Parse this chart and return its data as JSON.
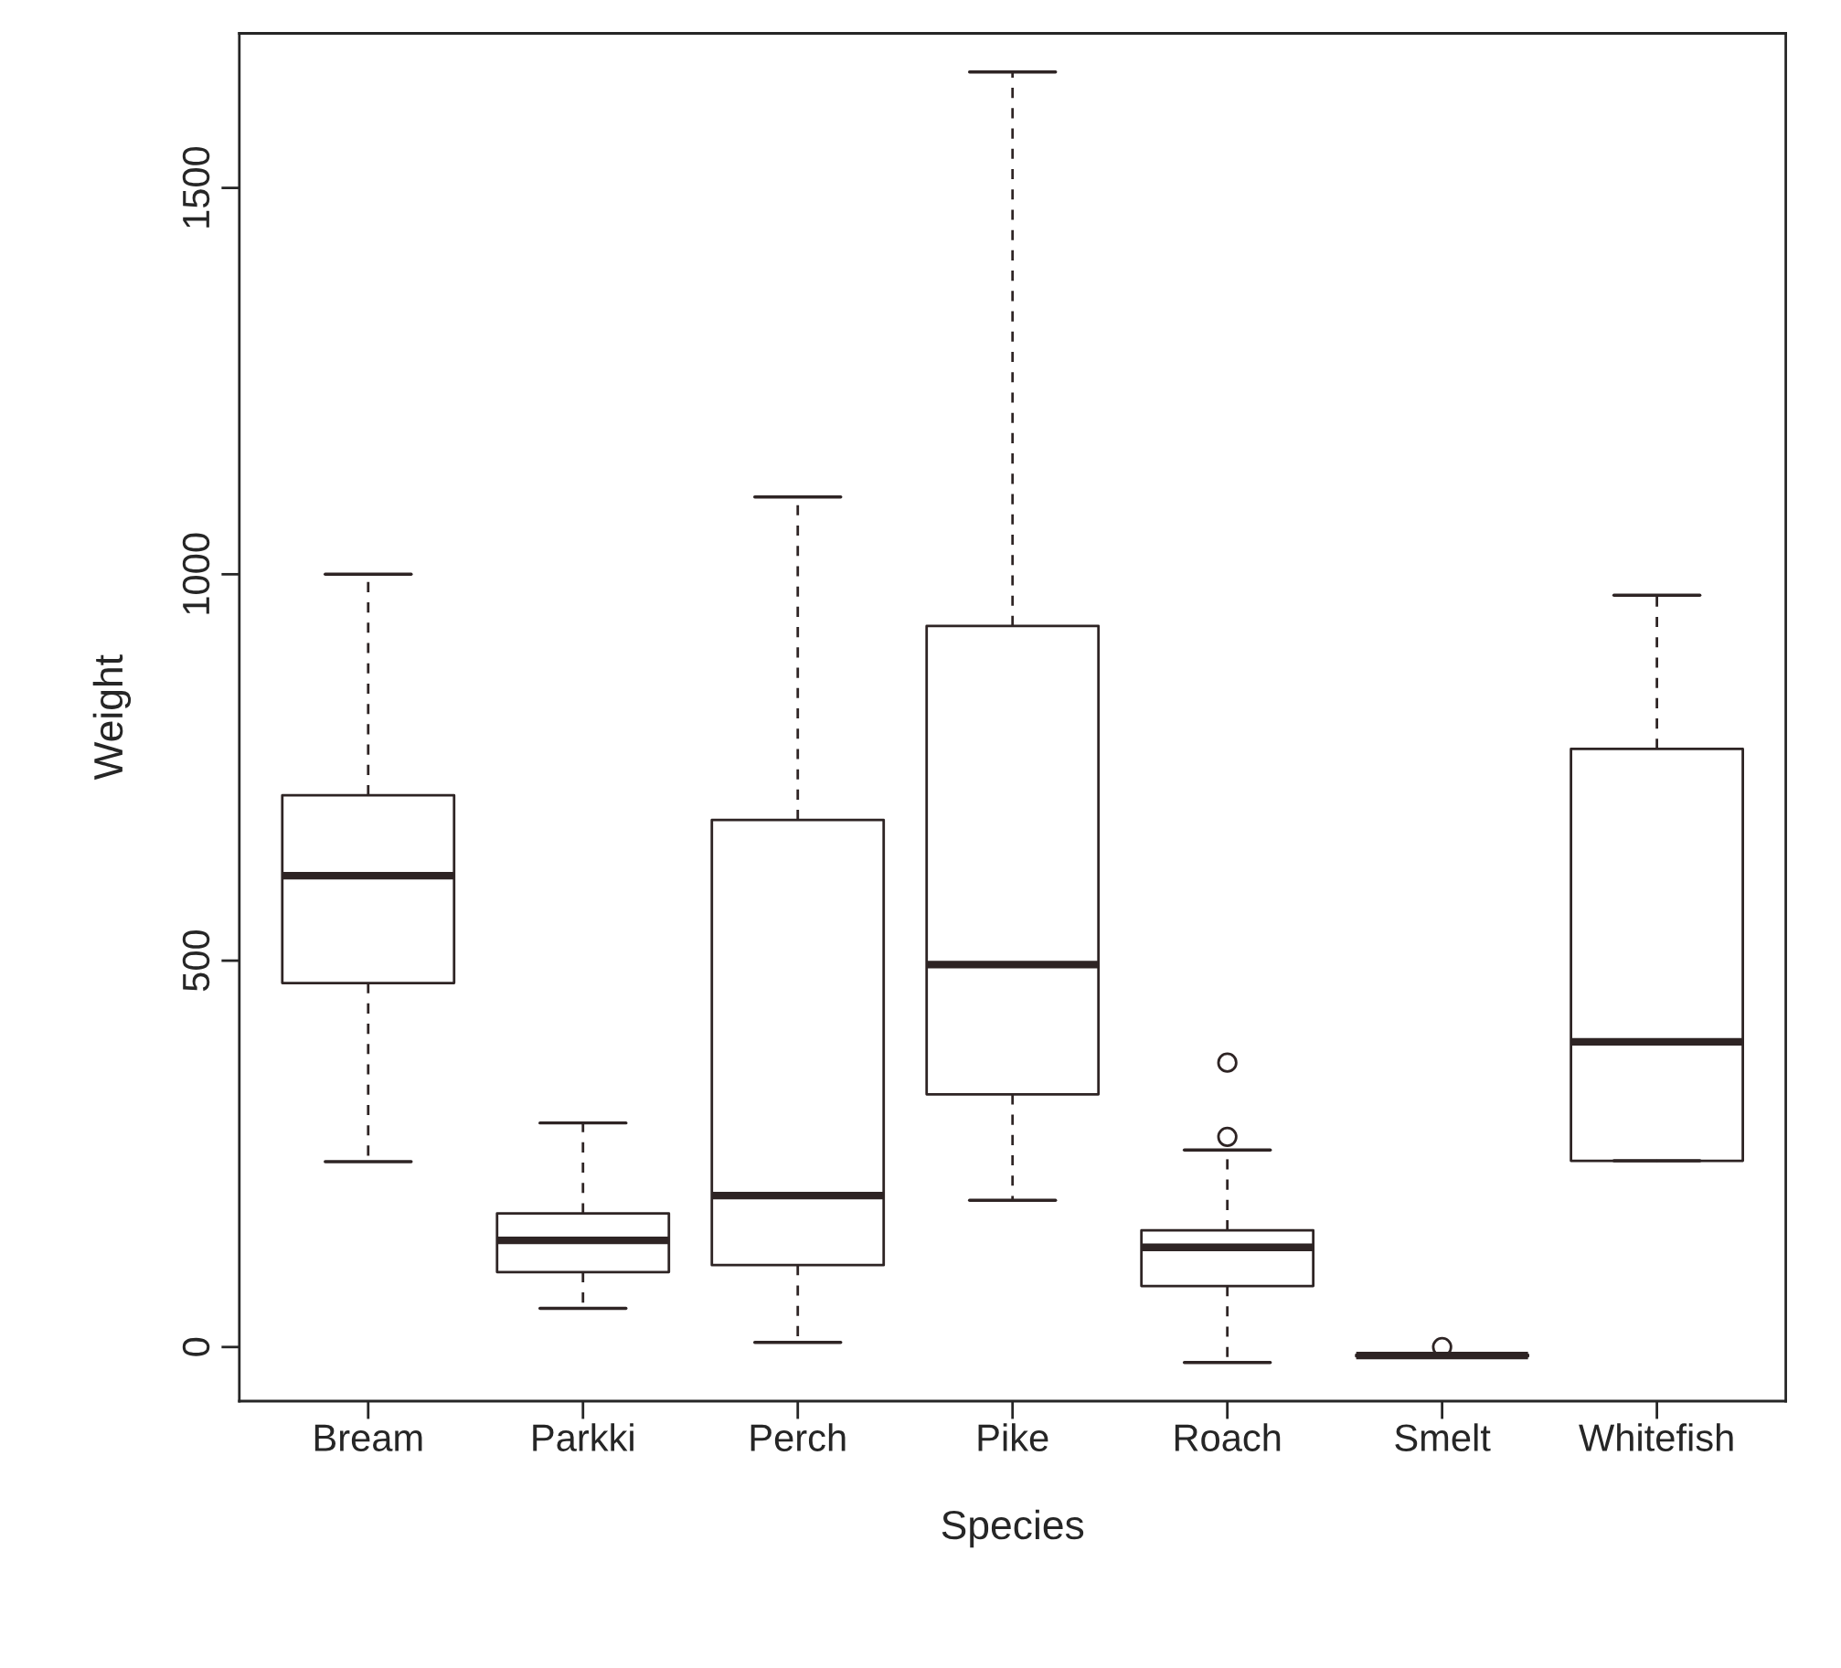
{
  "chart_data": {
    "type": "box",
    "xlabel": "Species",
    "ylabel": "Weight",
    "categories": [
      "Bream",
      "Parkki",
      "Perch",
      "Pike",
      "Roach",
      "Smelt",
      "Whitefish"
    ],
    "series": [
      {
        "color": "#2e2424",
        "boxes": [
          {
            "low": 240,
            "q1": 471,
            "median": 610,
            "q3": 714,
            "high": 1000
          },
          {
            "low": 50,
            "q1": 97,
            "median": 138,
            "q3": 173,
            "high": 290
          },
          {
            "low": 6,
            "q1": 106,
            "median": 196,
            "q3": 682,
            "high": 1100
          },
          {
            "low": 190,
            "q1": 327,
            "median": 495,
            "q3": 933,
            "high": 1650
          },
          {
            "low": -20,
            "q1": 79,
            "median": 129,
            "q3": 151,
            "high": 255,
            "outliers": [
              272,
              368
            ]
          },
          {
            "low": -13,
            "q1": -12,
            "median": -11,
            "q3": -10,
            "high": -9,
            "outliers": [
              0
            ]
          },
          {
            "low": 241,
            "q1": 241,
            "median": 395,
            "q3": 774,
            "high": 973
          }
        ]
      }
    ],
    "ylim": [
      -70,
      1700
    ],
    "yticks": [
      0,
      500,
      1000,
      1500
    ],
    "grid": false
  }
}
